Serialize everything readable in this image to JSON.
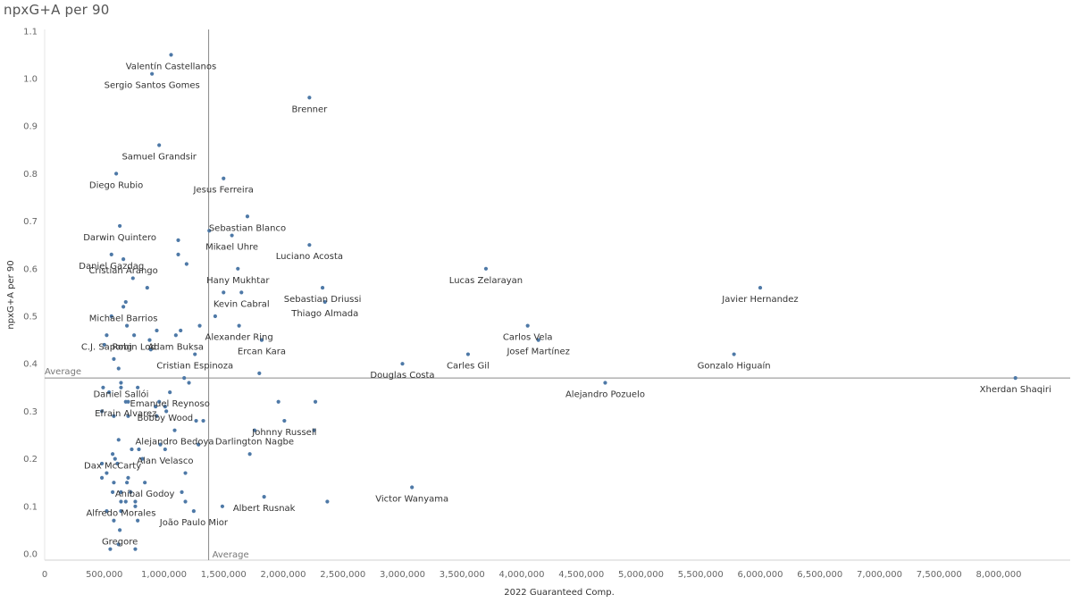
{
  "chart_data": {
    "type": "scatter",
    "title": "npxG+A per 90",
    "xlabel": "2022 Guaranteed Comp.",
    "ylabel": "npxG+A per 90",
    "xlim": [
      0,
      8300000
    ],
    "ylim": [
      -0.01,
      1.12
    ],
    "xticks": [
      0,
      500000,
      1000000,
      1500000,
      2000000,
      2500000,
      3000000,
      3500000,
      4000000,
      4500000,
      5000000,
      5500000,
      6000000,
      6500000,
      7000000,
      7500000,
      8000000
    ],
    "xtick_labels": [
      "0",
      "500,000",
      "1,000,000",
      "1,500,000",
      "2,000,000",
      "2,500,000",
      "3,000,000",
      "3,500,000",
      "4,000,000",
      "4,500,000",
      "5,000,000",
      "5,500,000",
      "6,000,000",
      "6,500,000",
      "7,000,000",
      "7,500,000",
      "8,000,000"
    ],
    "yticks": [
      0.0,
      0.1,
      0.2,
      0.3,
      0.4,
      0.5,
      0.6,
      0.7,
      0.8,
      0.9,
      1.0,
      1.1
    ],
    "ytick_labels": [
      "0.0",
      "0.1",
      "0.2",
      "0.3",
      "0.4",
      "0.5",
      "0.6",
      "0.7",
      "0.8",
      "0.9",
      "1.0",
      "1.1"
    ],
    "grid": false,
    "reference_lines": {
      "x_average": 1375000,
      "y_average": 0.37,
      "x_label": "Average",
      "y_label": "Average"
    },
    "point_color": "#4e79a7",
    "points": [
      {
        "x": 1060000,
        "y": 1.05,
        "label": "Valentín Castellanos"
      },
      {
        "x": 900000,
        "y": 1.01,
        "label": "Sergio Santos Gomes"
      },
      {
        "x": 2220000,
        "y": 0.96,
        "label": "Brenner"
      },
      {
        "x": 960000,
        "y": 0.86,
        "label": "Samuel Grandsir"
      },
      {
        "x": 600000,
        "y": 0.8,
        "label": "Diego Rubio"
      },
      {
        "x": 1500000,
        "y": 0.79,
        "label": "Jesus Ferreira"
      },
      {
        "x": 1700000,
        "y": 0.71,
        "label": "Sebastian Blanco"
      },
      {
        "x": 630000,
        "y": 0.69,
        "label": "Darwin Quintero"
      },
      {
        "x": 1570000,
        "y": 0.67,
        "label": "Mikael Uhre"
      },
      {
        "x": 2220000,
        "y": 0.65,
        "label": "Luciano Acosta"
      },
      {
        "x": 560000,
        "y": 0.63,
        "label": "Daniel Gazdag"
      },
      {
        "x": 660000,
        "y": 0.62,
        "label": "Cristian Arango"
      },
      {
        "x": 3700000,
        "y": 0.6,
        "label": "Lucas Zelarayan"
      },
      {
        "x": 1620000,
        "y": 0.6,
        "label": "Hany Mukhtar"
      },
      {
        "x": 6000000,
        "y": 0.56,
        "label": "Javier Hernandez"
      },
      {
        "x": 2330000,
        "y": 0.56,
        "label": "Sebastian Driussi"
      },
      {
        "x": 1650000,
        "y": 0.55,
        "label": "Kevin Cabral"
      },
      {
        "x": 660000,
        "y": 0.52,
        "label": "Michael Barrios"
      },
      {
        "x": 2350000,
        "y": 0.53,
        "label": "Thiago Almada"
      },
      {
        "x": 750000,
        "y": 0.46,
        "label": "Robin Lod"
      },
      {
        "x": 4050000,
        "y": 0.48,
        "label": "Carlos Vela"
      },
      {
        "x": 1630000,
        "y": 0.48,
        "label": "Alexander Ring"
      },
      {
        "x": 520000,
        "y": 0.46,
        "label": "C.J. Sapong"
      },
      {
        "x": 1100000,
        "y": 0.46,
        "label": "Adam Buksa"
      },
      {
        "x": 4140000,
        "y": 0.45,
        "label": "Josef Martínez"
      },
      {
        "x": 1820000,
        "y": 0.45,
        "label": "Ercan Kara"
      },
      {
        "x": 5780000,
        "y": 0.42,
        "label": "Gonzalo Higuaín"
      },
      {
        "x": 3550000,
        "y": 0.42,
        "label": "Carles Gil"
      },
      {
        "x": 1260000,
        "y": 0.42,
        "label": "Cristian Espinoza"
      },
      {
        "x": 3000000,
        "y": 0.4,
        "label": "Douglas Costa"
      },
      {
        "x": 8140000,
        "y": 0.37,
        "label": "Xherdan Shaqiri"
      },
      {
        "x": 640000,
        "y": 0.36,
        "label": "Daniel Sallói"
      },
      {
        "x": 4700000,
        "y": 0.36,
        "label": "Alejandro Pozuelo"
      },
      {
        "x": 1050000,
        "y": 0.34,
        "label": "Emanuel Reynoso"
      },
      {
        "x": 680000,
        "y": 0.32,
        "label": "Efrain Alvarez"
      },
      {
        "x": 1010000,
        "y": 0.31,
        "label": "Bobby Wood"
      },
      {
        "x": 2010000,
        "y": 0.28,
        "label": "Johnny Russell"
      },
      {
        "x": 1090000,
        "y": 0.26,
        "label": "Alejandro Bedoya"
      },
      {
        "x": 1760000,
        "y": 0.26,
        "label": "Darlington Nagbe"
      },
      {
        "x": 1010000,
        "y": 0.22,
        "label": "Alan Velasco"
      },
      {
        "x": 570000,
        "y": 0.21,
        "label": "Dax McCarty"
      },
      {
        "x": 840000,
        "y": 0.15,
        "label": "Aníbal Godoy"
      },
      {
        "x": 3080000,
        "y": 0.14,
        "label": "Victor Wanyama"
      },
      {
        "x": 1840000,
        "y": 0.12,
        "label": "Albert Rusnak"
      },
      {
        "x": 640000,
        "y": 0.11,
        "label": "Alfredo Morales"
      },
      {
        "x": 1250000,
        "y": 0.09,
        "label": "João Paulo Mior"
      },
      {
        "x": 630000,
        "y": 0.05,
        "label": "Gregore"
      },
      {
        "x": 1380000,
        "y": 0.68,
        "label": ""
      },
      {
        "x": 1120000,
        "y": 0.66,
        "label": ""
      },
      {
        "x": 1120000,
        "y": 0.63,
        "label": ""
      },
      {
        "x": 1190000,
        "y": 0.61,
        "label": ""
      },
      {
        "x": 740000,
        "y": 0.58,
        "label": ""
      },
      {
        "x": 860000,
        "y": 0.56,
        "label": ""
      },
      {
        "x": 1500000,
        "y": 0.55,
        "label": ""
      },
      {
        "x": 680000,
        "y": 0.53,
        "label": ""
      },
      {
        "x": 560000,
        "y": 0.5,
        "label": ""
      },
      {
        "x": 1430000,
        "y": 0.5,
        "label": ""
      },
      {
        "x": 690000,
        "y": 0.48,
        "label": ""
      },
      {
        "x": 940000,
        "y": 0.47,
        "label": ""
      },
      {
        "x": 1140000,
        "y": 0.47,
        "label": ""
      },
      {
        "x": 1300000,
        "y": 0.48,
        "label": ""
      },
      {
        "x": 880000,
        "y": 0.45,
        "label": ""
      },
      {
        "x": 500000,
        "y": 0.44,
        "label": ""
      },
      {
        "x": 890000,
        "y": 0.43,
        "label": ""
      },
      {
        "x": 580000,
        "y": 0.41,
        "label": ""
      },
      {
        "x": 620000,
        "y": 0.39,
        "label": ""
      },
      {
        "x": 1170000,
        "y": 0.37,
        "label": ""
      },
      {
        "x": 1210000,
        "y": 0.36,
        "label": ""
      },
      {
        "x": 1800000,
        "y": 0.38,
        "label": ""
      },
      {
        "x": 490000,
        "y": 0.35,
        "label": ""
      },
      {
        "x": 640000,
        "y": 0.35,
        "label": ""
      },
      {
        "x": 780000,
        "y": 0.35,
        "label": ""
      },
      {
        "x": 540000,
        "y": 0.34,
        "label": ""
      },
      {
        "x": 700000,
        "y": 0.32,
        "label": ""
      },
      {
        "x": 960000,
        "y": 0.32,
        "label": ""
      },
      {
        "x": 1960000,
        "y": 0.32,
        "label": ""
      },
      {
        "x": 2270000,
        "y": 0.32,
        "label": ""
      },
      {
        "x": 930000,
        "y": 0.31,
        "label": ""
      },
      {
        "x": 480000,
        "y": 0.3,
        "label": ""
      },
      {
        "x": 580000,
        "y": 0.29,
        "label": ""
      },
      {
        "x": 700000,
        "y": 0.29,
        "label": ""
      },
      {
        "x": 940000,
        "y": 0.29,
        "label": ""
      },
      {
        "x": 1020000,
        "y": 0.3,
        "label": ""
      },
      {
        "x": 1270000,
        "y": 0.28,
        "label": ""
      },
      {
        "x": 1330000,
        "y": 0.28,
        "label": ""
      },
      {
        "x": 2260000,
        "y": 0.26,
        "label": ""
      },
      {
        "x": 620000,
        "y": 0.24,
        "label": ""
      },
      {
        "x": 970000,
        "y": 0.23,
        "label": ""
      },
      {
        "x": 1290000,
        "y": 0.23,
        "label": ""
      },
      {
        "x": 730000,
        "y": 0.22,
        "label": ""
      },
      {
        "x": 790000,
        "y": 0.22,
        "label": ""
      },
      {
        "x": 1720000,
        "y": 0.21,
        "label": ""
      },
      {
        "x": 590000,
        "y": 0.2,
        "label": ""
      },
      {
        "x": 820000,
        "y": 0.2,
        "label": ""
      },
      {
        "x": 480000,
        "y": 0.19,
        "label": ""
      },
      {
        "x": 610000,
        "y": 0.19,
        "label": ""
      },
      {
        "x": 520000,
        "y": 0.17,
        "label": ""
      },
      {
        "x": 700000,
        "y": 0.16,
        "label": ""
      },
      {
        "x": 1180000,
        "y": 0.17,
        "label": ""
      },
      {
        "x": 480000,
        "y": 0.16,
        "label": ""
      },
      {
        "x": 580000,
        "y": 0.15,
        "label": ""
      },
      {
        "x": 690000,
        "y": 0.15,
        "label": ""
      },
      {
        "x": 1150000,
        "y": 0.13,
        "label": ""
      },
      {
        "x": 570000,
        "y": 0.13,
        "label": ""
      },
      {
        "x": 640000,
        "y": 0.13,
        "label": ""
      },
      {
        "x": 720000,
        "y": 0.13,
        "label": ""
      },
      {
        "x": 680000,
        "y": 0.11,
        "label": ""
      },
      {
        "x": 760000,
        "y": 0.11,
        "label": ""
      },
      {
        "x": 1180000,
        "y": 0.11,
        "label": ""
      },
      {
        "x": 2370000,
        "y": 0.11,
        "label": ""
      },
      {
        "x": 520000,
        "y": 0.09,
        "label": ""
      },
      {
        "x": 640000,
        "y": 0.09,
        "label": ""
      },
      {
        "x": 760000,
        "y": 0.1,
        "label": ""
      },
      {
        "x": 1490000,
        "y": 0.1,
        "label": ""
      },
      {
        "x": 580000,
        "y": 0.07,
        "label": ""
      },
      {
        "x": 780000,
        "y": 0.07,
        "label": ""
      },
      {
        "x": 620000,
        "y": 0.02,
        "label": ""
      },
      {
        "x": 550000,
        "y": 0.01,
        "label": ""
      },
      {
        "x": 760000,
        "y": 0.01,
        "label": ""
      }
    ]
  }
}
